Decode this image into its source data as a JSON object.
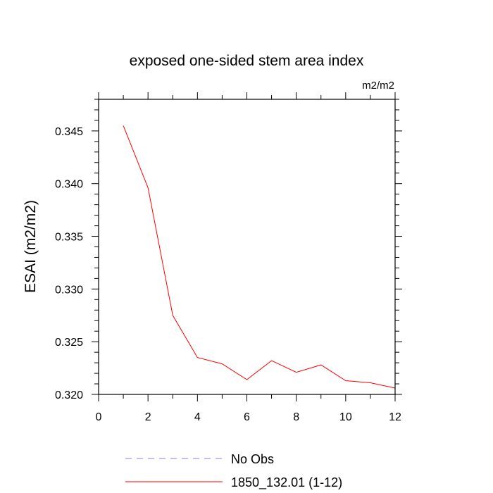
{
  "chart_data": {
    "type": "line",
    "title": "exposed one-sided stem area index",
    "units_label": "m2/m2",
    "xlabel": "",
    "ylabel": "ESAI  (m2/m2)",
    "xlim": [
      0,
      12
    ],
    "ylim": [
      0.32,
      0.348
    ],
    "x_ticks": [
      0,
      2,
      4,
      6,
      8,
      10,
      12
    ],
    "x_tick_labels": [
      "0",
      "2",
      "4",
      "6",
      "8",
      "10",
      "12"
    ],
    "y_ticks": [
      0.32,
      0.325,
      0.33,
      0.335,
      0.34,
      0.345
    ],
    "y_tick_labels": [
      "0.320",
      "0.325",
      "0.330",
      "0.335",
      "0.340",
      "0.345"
    ],
    "grid": false,
    "legend_position": "bottom",
    "series": [
      {
        "name": "1850_132.01 (1-12)",
        "color": "#ff0000",
        "style": "solid",
        "x": [
          1,
          2,
          3,
          4,
          5,
          6,
          7,
          8,
          9,
          10,
          11,
          12
        ],
        "values": [
          0.3455,
          0.3396,
          0.3275,
          0.3235,
          0.3229,
          0.3214,
          0.3232,
          0.3221,
          0.3228,
          0.3213,
          0.3211,
          0.3206
        ]
      }
    ],
    "legend": [
      {
        "label": "No Obs",
        "color": "#8080ff",
        "style": "dashed"
      },
      {
        "label": "1850_132.01 (1-12)",
        "color": "#ff0000",
        "style": "solid"
      }
    ]
  }
}
